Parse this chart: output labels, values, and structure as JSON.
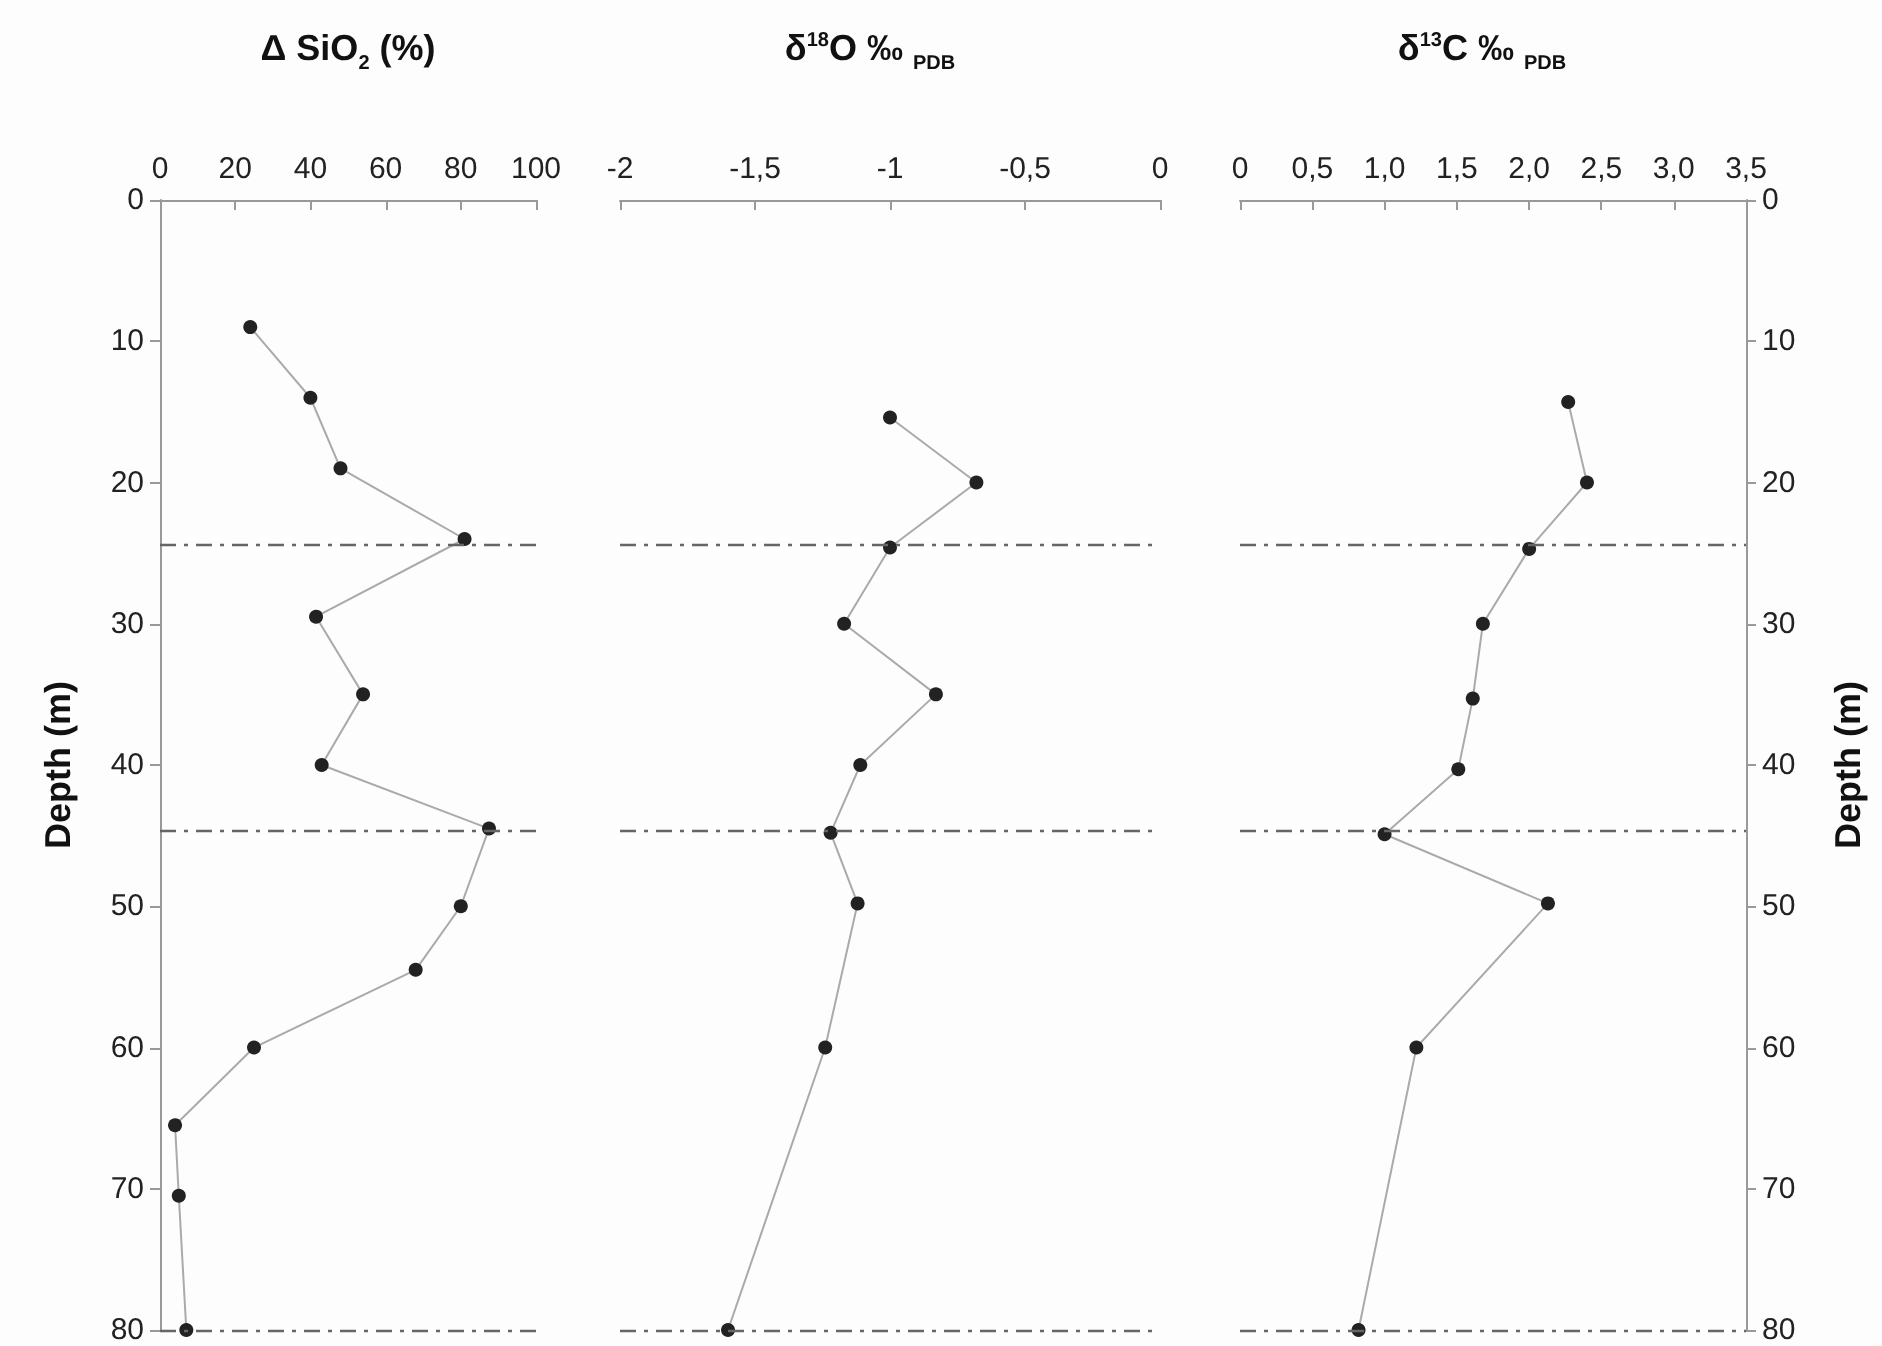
{
  "chart_data": [
    {
      "type": "line",
      "title": "Δ SiO$_{2}$ (%)",
      "ylabel": "Depth (m)",
      "xlim": [
        0,
        100
      ],
      "xticks": [
        0,
        20,
        40,
        60,
        80,
        100
      ],
      "ylim": [
        80,
        0
      ],
      "yticks": [
        0,
        10,
        20,
        30,
        40,
        50,
        60,
        70,
        80
      ],
      "grid": false,
      "marker": "circle",
      "line_style": "solid",
      "series": [
        {
          "color": "#222222",
          "x": [
            24,
            40,
            48,
            81,
            41.5,
            54,
            43,
            87.5,
            80,
            68,
            25,
            4,
            5,
            7
          ],
          "values": [
            9,
            14,
            19,
            24,
            29.5,
            35,
            40,
            44.5,
            50,
            54.5,
            60,
            65.5,
            70.5,
            80
          ]
        }
      ],
      "ref_lines": [
        {
          "axis": "y",
          "value": 24.4,
          "line_style": "dashed"
        },
        {
          "axis": "y",
          "value": 44.6,
          "line_style": "dashed"
        },
        {
          "axis": "y",
          "value": 80,
          "line_style": "dashed"
        }
      ]
    },
    {
      "type": "line",
      "title": "δ$^{18}$O ‰ $_{PDB}$",
      "xlim": [
        -2,
        0
      ],
      "xticks": [
        -2,
        {
          "value": -1.5,
          "label": "-1,5"
        },
        -1,
        {
          "value": -0.5,
          "label": "-0,5"
        },
        0
      ],
      "ylim": [
        80,
        0
      ],
      "tick_labels": "x",
      "grid": false,
      "marker": "circle",
      "line_style": "solid",
      "series": [
        {
          "color": "#222222",
          "x": [
            -1.0,
            -0.68,
            -1.0,
            -1.17,
            -0.83,
            -1.11,
            -1.22,
            -1.12,
            -1.24,
            -1.6
          ],
          "values": [
            15.4,
            20,
            24.6,
            30,
            35,
            40,
            44.8,
            49.8,
            60,
            80
          ]
        }
      ],
      "ref_lines": [
        {
          "axis": "y",
          "value": 24.4,
          "line_style": "dashed"
        },
        {
          "axis": "y",
          "value": 44.6,
          "line_style": "dashed"
        },
        {
          "axis": "y",
          "value": 80,
          "line_style": "dashed"
        }
      ]
    },
    {
      "type": "line",
      "title": "δ$^{13}$C ‰ $_{PDB}$",
      "y2label": "Depth (m)",
      "xlim": [
        0,
        3.5
      ],
      "xticks": [
        0,
        {
          "value": 0.5,
          "label": "0,5"
        },
        {
          "value": 1,
          "label": "1,0"
        },
        {
          "value": 1.5,
          "label": "1,5"
        },
        {
          "value": 2,
          "label": "2,0"
        },
        {
          "value": 2.5,
          "label": "2,5"
        },
        {
          "value": 3,
          "label": "3,0"
        },
        {
          "value": 3.5,
          "label": "3,5"
        }
      ],
      "y2lim": [
        80,
        0
      ],
      "y2ticks": [
        0,
        10,
        20,
        30,
        40,
        50,
        60,
        70,
        80
      ],
      "grid": false,
      "marker": "circle",
      "line_style": "solid",
      "series": [
        {
          "color": "#222222",
          "axis": "y2",
          "x": [
            2.27,
            2.4,
            2.0,
            1.68,
            1.61,
            1.51,
            1.0,
            2.13,
            1.22,
            0.82
          ],
          "values": [
            14.3,
            20,
            24.7,
            30,
            35.3,
            40.3,
            44.9,
            49.8,
            60,
            80
          ]
        }
      ],
      "ref_lines": [
        {
          "axis": "y2",
          "value": 24.4,
          "line_style": "dashed"
        },
        {
          "axis": "y2",
          "value": 44.6,
          "line_style": "dashed"
        },
        {
          "axis": "y2",
          "value": 80,
          "line_style": "dashed"
        }
      ]
    }
  ]
}
